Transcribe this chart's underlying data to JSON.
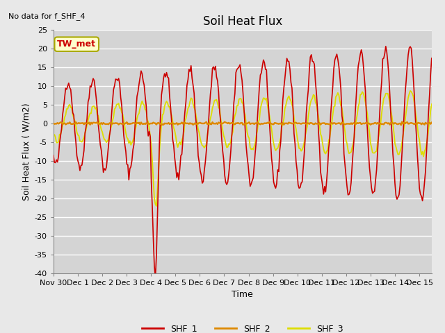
{
  "title": "Soil Heat Flux",
  "xlabel": "Time",
  "ylabel": "Soil Heat Flux ( W/m2)",
  "ylim": [
    -40,
    25
  ],
  "yticks": [
    -40,
    -35,
    -30,
    -25,
    -20,
    -15,
    -10,
    -5,
    0,
    5,
    10,
    15,
    20,
    25
  ],
  "xtick_labels": [
    "Nov 30",
    "Dec 1",
    "Dec 2",
    "Dec 3",
    "Dec 4",
    "Dec 5",
    "Dec 6",
    "Dec 7",
    "Dec 8",
    "Dec 9",
    "Dec 10",
    "Dec 11",
    "Dec 12",
    "Dec 13",
    "Dec 14",
    "Dec 15"
  ],
  "color_shf1": "#cc0000",
  "color_shf2": "#dd8800",
  "color_shf3": "#dddd00",
  "legend_labels": [
    "SHF_1",
    "SHF_2",
    "SHF_3"
  ],
  "note_text": "No data for f_SHF_4",
  "box_label": "TW_met",
  "background_color": "#e8e8e8",
  "plot_bg_color": "#d4d4d4",
  "grid_color": "#ffffff",
  "title_fontsize": 12,
  "axis_label_fontsize": 9,
  "tick_fontsize": 8,
  "figwidth": 6.4,
  "figheight": 4.8,
  "dpi": 100
}
